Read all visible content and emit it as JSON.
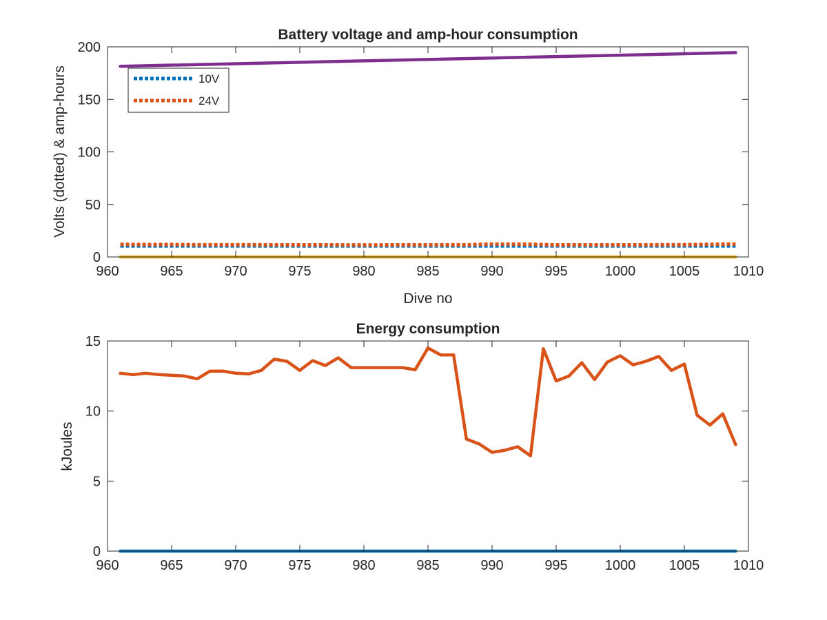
{
  "chart_data": [
    {
      "type": "line",
      "title": "Battery voltage and amp-hour consumption",
      "xlabel": "Dive no",
      "ylabel": "Volts (dotted) & amp-hours",
      "xlim": [
        960,
        1010
      ],
      "ylim": [
        0,
        200
      ],
      "xticks": [
        960,
        965,
        970,
        975,
        980,
        985,
        990,
        995,
        1000,
        1005,
        1010
      ],
      "yticks": [
        0,
        50,
        100,
        150,
        200
      ],
      "grid": false,
      "legend_position": "top-left",
      "legend": [
        "10V",
        "24V"
      ],
      "series": [
        {
          "name": "10V",
          "style": "dotted",
          "color": "#0072BD",
          "x": [
            961,
            1009
          ],
          "y": [
            10.4,
            10.4
          ]
        },
        {
          "name": "24V",
          "style": "dotted",
          "color": "#D95319",
          "x": [
            961,
            963,
            965,
            967,
            970,
            975,
            980,
            985,
            988,
            990,
            993,
            995,
            1000,
            1005,
            1009
          ],
          "y": [
            12.0,
            11.8,
            11.9,
            11.6,
            11.7,
            11.5,
            11.4,
            11.5,
            11.6,
            12.3,
            12.1,
            11.5,
            11.5,
            11.7,
            12.3
          ]
        },
        {
          "style": "solid",
          "color": "#EDB120",
          "x": [
            961,
            1009
          ],
          "y": [
            0,
            0
          ]
        },
        {
          "style": "solid",
          "color": "#7E2F8E",
          "x": [
            961,
            1009
          ],
          "y": [
            181.5,
            194.5
          ]
        }
      ]
    },
    {
      "type": "line",
      "title": "Energy consumption",
      "xlabel": "",
      "ylabel": "kJoules",
      "xlim": [
        960,
        1010
      ],
      "ylim": [
        0,
        15
      ],
      "xticks": [
        960,
        965,
        970,
        975,
        980,
        985,
        990,
        995,
        1000,
        1005,
        1010
      ],
      "yticks": [
        0,
        5,
        10,
        15
      ],
      "grid": false,
      "series": [
        {
          "style": "solid",
          "color": "#0072BD",
          "x": [
            961,
            1009
          ],
          "y": [
            0,
            0
          ]
        },
        {
          "style": "solid",
          "color": "#D95319",
          "x": [
            961,
            962,
            963,
            964,
            965,
            966,
            967,
            968,
            969,
            970,
            971,
            972,
            973,
            974,
            975,
            976,
            977,
            978,
            979,
            980,
            981,
            982,
            983,
            984,
            985,
            986,
            987,
            988,
            989,
            990,
            991,
            992,
            993,
            994,
            995,
            996,
            997,
            998,
            999,
            1000,
            1001,
            1002,
            1003,
            1004,
            1005,
            1006,
            1007,
            1008,
            1009
          ],
          "y": [
            12.7,
            12.6,
            12.7,
            12.6,
            12.55,
            12.5,
            12.3,
            12.85,
            12.85,
            12.7,
            12.65,
            12.9,
            13.7,
            13.55,
            12.9,
            13.6,
            13.25,
            13.8,
            13.1,
            13.1,
            13.1,
            13.1,
            13.1,
            12.95,
            14.5,
            14.0,
            14.0,
            8.0,
            7.65,
            7.05,
            7.2,
            7.45,
            6.8,
            14.45,
            12.15,
            12.5,
            13.45,
            12.25,
            13.5,
            13.95,
            13.3,
            13.55,
            13.9,
            12.9,
            13.35,
            9.7,
            9.0,
            9.8,
            7.6
          ]
        }
      ]
    }
  ]
}
